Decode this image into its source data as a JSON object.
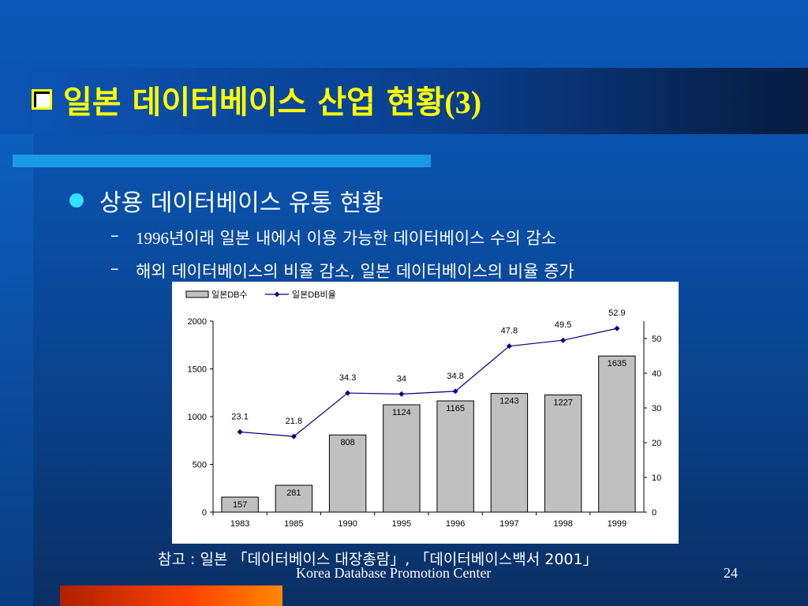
{
  "slide": {
    "title_text": "일본 데이터베이스 산업 현황",
    "title_num": "(3)",
    "bullet": "상용 데이터베이스 유통 현황",
    "sub1_prefix": "1996",
    "sub1_text": "년이래 일본 내에서 이용 가능한 데이터베이스 수의 감소",
    "sub2_text": "해외 데이터베이스의 비율 감소, 일본 데이터베이스의 비율 증가",
    "reference": "참고 : 일본 「데이터베이스 대장총람」, 「데이터베이스백서 2001」",
    "footer": "Korea Database Promotion Center",
    "page_number": "24",
    "dash": "–"
  },
  "chart_data": {
    "type": "bar+line",
    "categories": [
      "1983",
      "1985",
      "1990",
      "1995",
      "1996",
      "1997",
      "1998",
      "1999"
    ],
    "series": [
      {
        "name": "일본DB수",
        "type": "bar",
        "axis": "left",
        "values": [
          157,
          281,
          808,
          1124,
          1165,
          1243,
          1227,
          1635
        ]
      },
      {
        "name": "일본DB비율",
        "type": "line",
        "axis": "right",
        "values": [
          23.1,
          21.8,
          34.3,
          34,
          34.8,
          47.8,
          49.5,
          52.9
        ]
      }
    ],
    "y_left": {
      "min": 0,
      "max": 2000,
      "ticks": [
        0,
        500,
        1000,
        1500,
        2000
      ]
    },
    "y_right": {
      "min": 0,
      "max": 55,
      "ticks": [
        0,
        10,
        20,
        30,
        40,
        50
      ]
    },
    "legend_position": "top-left",
    "colors": {
      "bar": "#c0c0c0",
      "line": "#000080",
      "marker": "#000080"
    }
  }
}
